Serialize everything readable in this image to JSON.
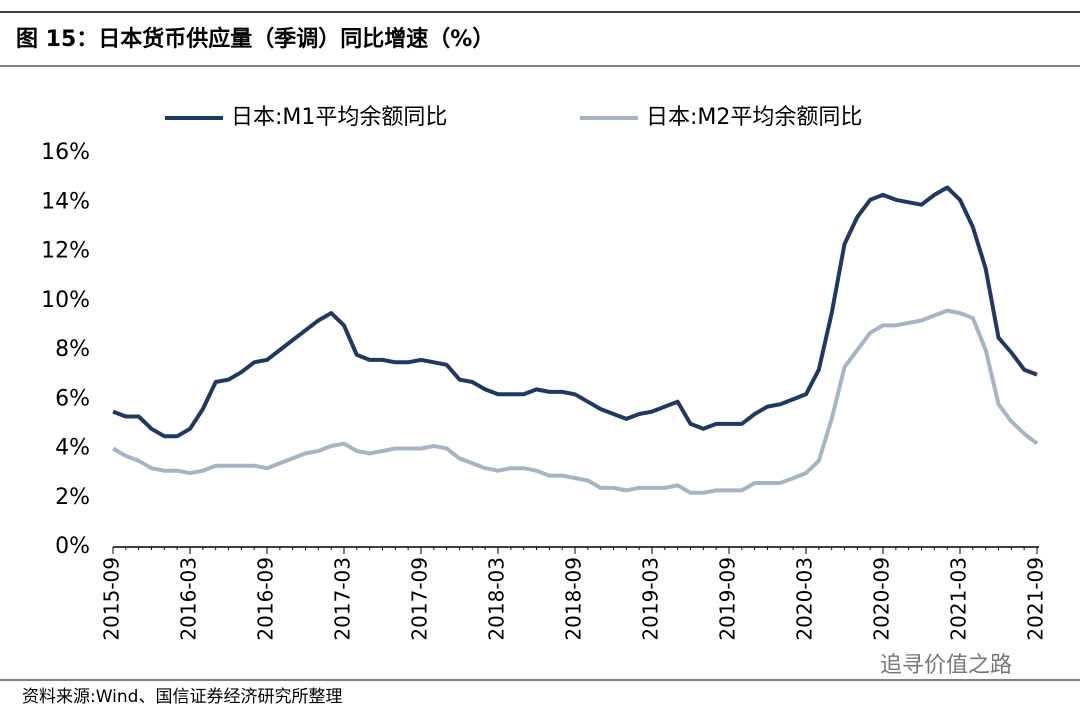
{
  "chart_data": {
    "type": "line",
    "title": "图 15：日本货币供应量（季调）同比增速（%）",
    "source": "资料来源:Wind、国信证券经济研究所整理",
    "watermark": "追寻价值之路",
    "categories": [
      "2015-09",
      null,
      null,
      null,
      null,
      null,
      "2016-03",
      null,
      null,
      null,
      null,
      null,
      "2016-09",
      null,
      null,
      null,
      null,
      null,
      "2017-03",
      null,
      null,
      null,
      null,
      null,
      "2017-09",
      null,
      null,
      null,
      null,
      null,
      "2018-03",
      null,
      null,
      null,
      null,
      null,
      "2018-09",
      null,
      null,
      null,
      null,
      null,
      "2019-03",
      null,
      null,
      null,
      null,
      null,
      "2019-09",
      null,
      null,
      null,
      null,
      null,
      "2020-03",
      null,
      null,
      null,
      null,
      null,
      "2020-09",
      null,
      null,
      null,
      null,
      null,
      "2021-03",
      null,
      null,
      null,
      null,
      null,
      "2021-09"
    ],
    "series": [
      {
        "name": "日本:M1平均余额同比",
        "color": "#1f3864",
        "values": [
          5.5,
          5.3,
          5.3,
          4.8,
          4.5,
          4.5,
          4.8,
          5.6,
          6.7,
          6.8,
          7.1,
          7.5,
          7.6,
          8.0,
          8.4,
          8.8,
          9.2,
          9.5,
          9.0,
          7.8,
          7.6,
          7.6,
          7.5,
          7.5,
          7.6,
          7.5,
          7.4,
          6.8,
          6.7,
          6.4,
          6.2,
          6.2,
          6.2,
          6.4,
          6.3,
          6.3,
          6.2,
          5.9,
          5.6,
          5.4,
          5.2,
          5.4,
          5.5,
          5.7,
          5.9,
          5.0,
          4.8,
          5.0,
          5.0,
          5.0,
          5.4,
          5.7,
          5.8,
          6.0,
          6.2,
          7.2,
          9.5,
          12.3,
          13.4,
          14.1,
          14.3,
          14.1,
          14.0,
          13.9,
          14.3,
          14.6,
          14.1,
          13.0,
          11.3,
          8.5,
          7.9,
          7.2,
          7.0
        ]
      },
      {
        "name": "日本:M2平均余额同比",
        "color": "#a6b4c5",
        "values": [
          4.0,
          3.7,
          3.5,
          3.2,
          3.1,
          3.1,
          3.0,
          3.1,
          3.3,
          3.3,
          3.3,
          3.3,
          3.2,
          3.4,
          3.6,
          3.8,
          3.9,
          4.1,
          4.2,
          3.9,
          3.8,
          3.9,
          4.0,
          4.0,
          4.0,
          4.1,
          4.0,
          3.6,
          3.4,
          3.2,
          3.1,
          3.2,
          3.2,
          3.1,
          2.9,
          2.9,
          2.8,
          2.7,
          2.4,
          2.4,
          2.3,
          2.4,
          2.4,
          2.4,
          2.5,
          2.2,
          2.2,
          2.3,
          2.3,
          2.3,
          2.6,
          2.6,
          2.6,
          2.8,
          3.0,
          3.5,
          5.2,
          7.3,
          8.0,
          8.7,
          9.0,
          9.0,
          9.1,
          9.2,
          9.4,
          9.6,
          9.5,
          9.3,
          8.0,
          5.8,
          5.1,
          4.6,
          4.2
        ]
      }
    ],
    "ylim": [
      0,
      16
    ],
    "yticks": [
      {
        "value": 0,
        "label": "0%"
      },
      {
        "value": 2,
        "label": "2%"
      },
      {
        "value": 4,
        "label": "4%"
      },
      {
        "value": 6,
        "label": "6%"
      },
      {
        "value": 8,
        "label": "8%"
      },
      {
        "value": 10,
        "label": "10%"
      },
      {
        "value": 12,
        "label": "12%"
      },
      {
        "value": 14,
        "label": "14%"
      },
      {
        "value": 16,
        "label": "16%"
      }
    ],
    "grid": false
  }
}
